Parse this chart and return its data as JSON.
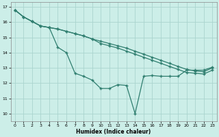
{
  "xlabel": "Humidex (Indice chaleur)",
  "bg_color": "#cceee8",
  "line_color": "#2e7d6e",
  "grid_color": "#aad4ce",
  "xlim": [
    -0.5,
    23.5
  ],
  "ylim": [
    9.5,
    17.3
  ],
  "yticks": [
    10,
    11,
    12,
    13,
    14,
    15,
    16,
    17
  ],
  "xticks": [
    0,
    1,
    2,
    3,
    4,
    5,
    6,
    7,
    8,
    9,
    10,
    11,
    12,
    13,
    14,
    15,
    16,
    17,
    18,
    19,
    20,
    21,
    22,
    23
  ],
  "line1_x": [
    0,
    1,
    2,
    3,
    4,
    5,
    6,
    7,
    8,
    9,
    10,
    11,
    12,
    13,
    14,
    15,
    16,
    17,
    18,
    19,
    20,
    21,
    22,
    23
  ],
  "line1_y": [
    16.8,
    16.35,
    16.05,
    15.75,
    15.65,
    15.55,
    15.4,
    15.25,
    15.1,
    14.9,
    14.75,
    14.6,
    14.45,
    14.3,
    14.1,
    13.9,
    13.7,
    13.5,
    13.3,
    13.1,
    12.9,
    12.8,
    12.75,
    13.0
  ],
  "line2_x": [
    0,
    1,
    2,
    3,
    4,
    5,
    6,
    7,
    8,
    9,
    10,
    11,
    12,
    13,
    14,
    15,
    16,
    17,
    18,
    19,
    20,
    21,
    22,
    23
  ],
  "line2_y": [
    16.8,
    16.35,
    16.05,
    15.75,
    15.65,
    15.55,
    15.4,
    15.25,
    15.1,
    14.9,
    14.6,
    14.45,
    14.3,
    14.1,
    13.9,
    13.7,
    13.5,
    13.3,
    13.1,
    12.9,
    12.7,
    12.65,
    12.6,
    12.85
  ],
  "line3_x": [
    0,
    1,
    2,
    3,
    4,
    5,
    6,
    7,
    8,
    9,
    10,
    11,
    12,
    13,
    14,
    15,
    16,
    17,
    18,
    19,
    20,
    21,
    22,
    23
  ],
  "line3_y": [
    16.8,
    16.35,
    16.05,
    15.75,
    15.65,
    14.35,
    14.0,
    12.65,
    12.45,
    12.2,
    11.65,
    11.65,
    11.9,
    11.85,
    10.0,
    12.45,
    12.5,
    12.45,
    12.45,
    12.45,
    12.85,
    12.85,
    12.85,
    13.05
  ]
}
